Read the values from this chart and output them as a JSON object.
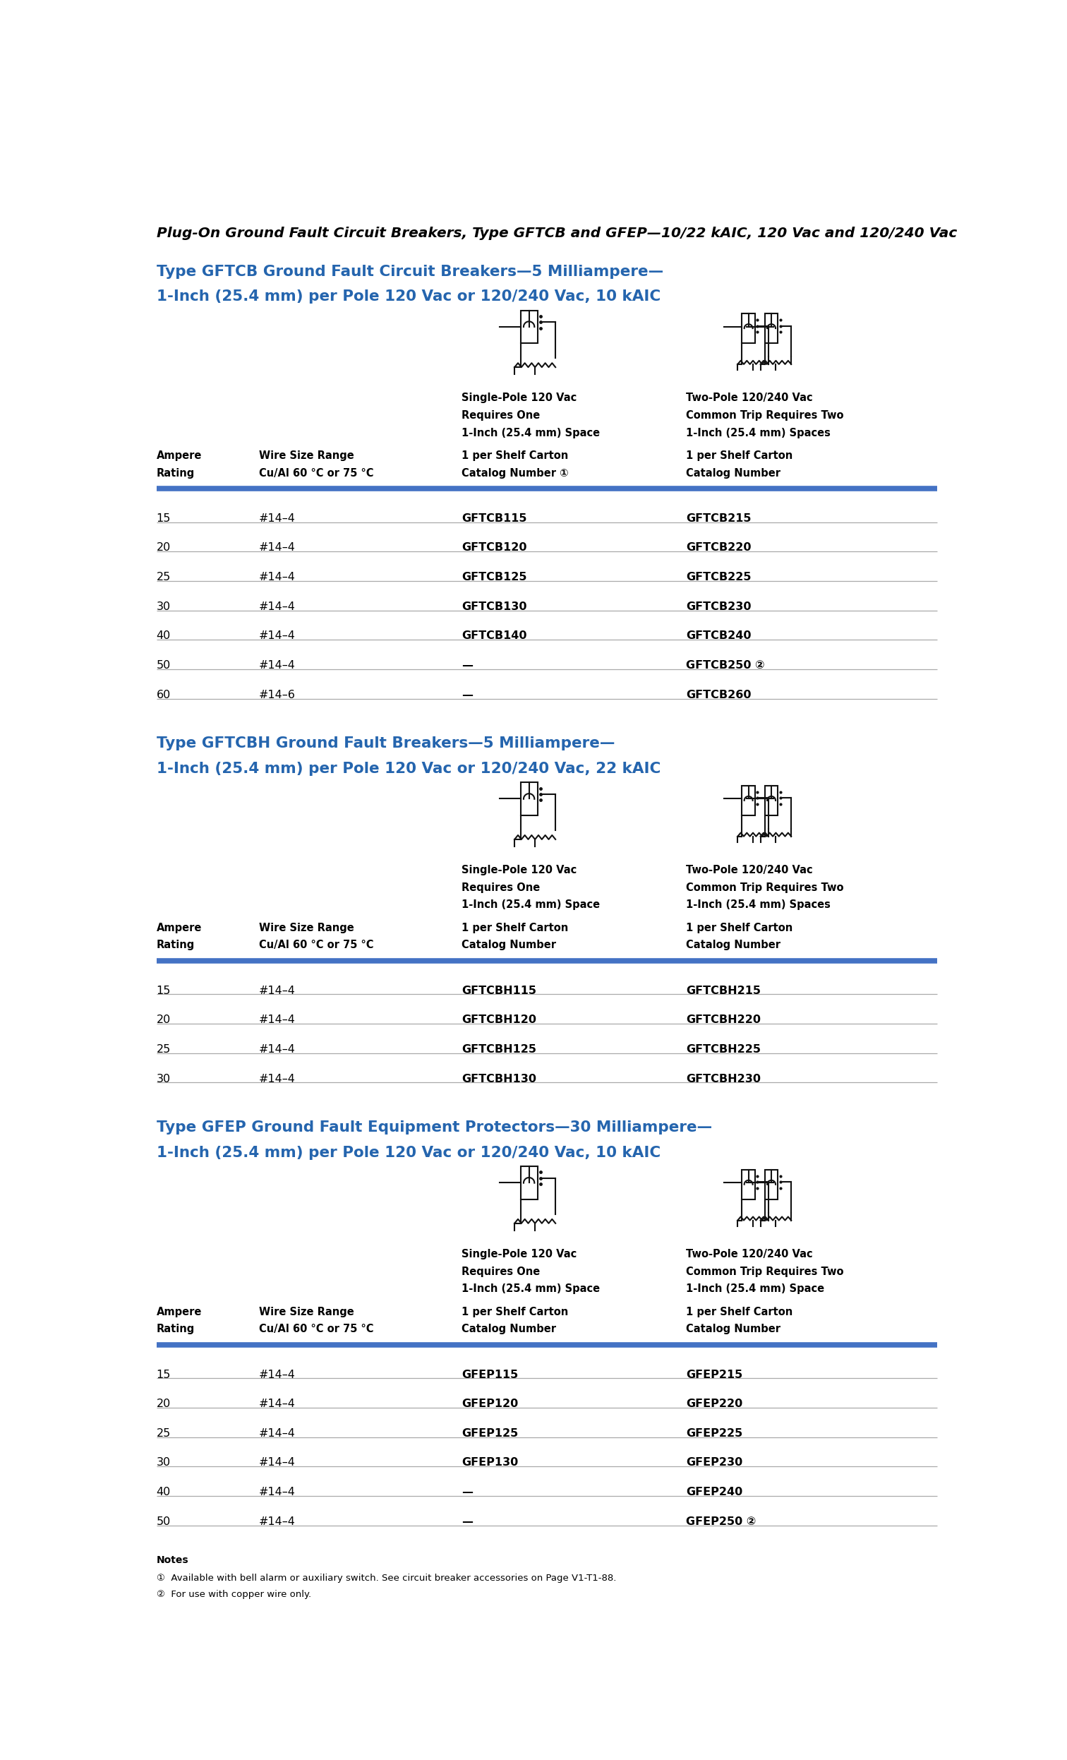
{
  "page_title": "Plug-On Ground Fault Circuit Breakers, Type GFTCB and GFEP—10/22 kAIC, 120 Vac and 120/240 Vac",
  "background_color": "#ffffff",
  "title_color": "#000000",
  "section_title_color": "#2565ae",
  "header_color": "#000000",
  "row_text_color": "#000000",
  "blue_line_color": "#4472c4",
  "gray_line_color": "#aaaaaa",
  "sections": [
    {
      "title_line1": "Type GFTCB Ground Fault Circuit Breakers—5 Milliampere—",
      "title_line2": "1-Inch (25.4 mm) per Pole 120 Vac or 120/240 Vac, 10 kAIC",
      "col1_header1": "Ampere",
      "col1_header2": "Rating",
      "col2_header1": "Wire Size Range",
      "col2_header2": "Cu/Al 60 °C or 75 °C",
      "col3_top1": "Single-Pole 120 Vac",
      "col3_top2": "Requires One",
      "col3_top3": "1-Inch (25.4 mm) Space",
      "col3_mid": "1 per Shelf Carton",
      "col3_bot": "Catalog Number ①",
      "col4_top1": "Two-Pole 120/240 Vac",
      "col4_top2": "Common Trip Requires Two",
      "col4_top3": "1-Inch (25.4 mm) Spaces",
      "col4_mid": "1 per Shelf Carton",
      "col4_bot": "Catalog Number",
      "rows": [
        [
          "15",
          "#14–4",
          "GFTCB115",
          "GFTCB215"
        ],
        [
          "20",
          "#14–4",
          "GFTCB120",
          "GFTCB220"
        ],
        [
          "25",
          "#14–4",
          "GFTCB125",
          "GFTCB225"
        ],
        [
          "30",
          "#14–4",
          "GFTCB130",
          "GFTCB230"
        ],
        [
          "40",
          "#14–4",
          "GFTCB140",
          "GFTCB240"
        ],
        [
          "50",
          "#14–4",
          "—",
          "GFTCB250 ②"
        ],
        [
          "60",
          "#14–6",
          "—",
          "GFTCB260"
        ]
      ]
    },
    {
      "title_line1": "Type GFTCBH Ground Fault Breakers—5 Milliampere—",
      "title_line2": "1-Inch (25.4 mm) per Pole 120 Vac or 120/240 Vac, 22 kAIC",
      "col1_header1": "Ampere",
      "col1_header2": "Rating",
      "col2_header1": "Wire Size Range",
      "col2_header2": "Cu/Al 60 °C or 75 °C",
      "col3_top1": "Single-Pole 120 Vac",
      "col3_top2": "Requires One",
      "col3_top3": "1-Inch (25.4 mm) Space",
      "col3_mid": "1 per Shelf Carton",
      "col3_bot": "Catalog Number",
      "col4_top1": "Two-Pole 120/240 Vac",
      "col4_top2": "Common Trip Requires Two",
      "col4_top3": "1-Inch (25.4 mm) Spaces",
      "col4_mid": "1 per Shelf Carton",
      "col4_bot": "Catalog Number",
      "rows": [
        [
          "15",
          "#14–4",
          "GFTCBH115",
          "GFTCBH215"
        ],
        [
          "20",
          "#14–4",
          "GFTCBH120",
          "GFTCBH220"
        ],
        [
          "25",
          "#14–4",
          "GFTCBH125",
          "GFTCBH225"
        ],
        [
          "30",
          "#14–4",
          "GFTCBH130",
          "GFTCBH230"
        ]
      ]
    },
    {
      "title_line1": "Type GFEP Ground Fault Equipment Protectors—30 Milliampere—",
      "title_line2": "1-Inch (25.4 mm) per Pole 120 Vac or 120/240 Vac, 10 kAIC",
      "col1_header1": "Ampere",
      "col1_header2": "Rating",
      "col2_header1": "Wire Size Range",
      "col2_header2": "Cu/Al 60 °C or 75 °C",
      "col3_top1": "Single-Pole 120 Vac",
      "col3_top2": "Requires One",
      "col3_top3": "1-Inch (25.4 mm) Space",
      "col3_mid": "1 per Shelf Carton",
      "col3_bot": "Catalog Number",
      "col4_top1": "Two-Pole 120/240 Vac",
      "col4_top2": "Common Trip Requires Two",
      "col4_top3": "1-Inch (25.4 mm) Space",
      "col4_mid": "1 per Shelf Carton",
      "col4_bot": "Catalog Number",
      "rows": [
        [
          "15",
          "#14–4",
          "GFEP115",
          "GFEP215"
        ],
        [
          "20",
          "#14–4",
          "GFEP120",
          "GFEP220"
        ],
        [
          "25",
          "#14–4",
          "GFEP125",
          "GFEP225"
        ],
        [
          "30",
          "#14–4",
          "GFEP130",
          "GFEP230"
        ],
        [
          "40",
          "#14–4",
          "—",
          "GFEP240"
        ],
        [
          "50",
          "#14–4",
          "—",
          "GFEP250 ②"
        ]
      ]
    }
  ],
  "notes_title": "Notes",
  "notes": [
    "①  Available with bell alarm or auxiliary switch. See circuit breaker accessories on ⁠Page V1-T1-88.",
    "②  For use with copper wire only."
  ],
  "notes_bold_part": [
    "Page V1-T1-88.",
    ""
  ]
}
